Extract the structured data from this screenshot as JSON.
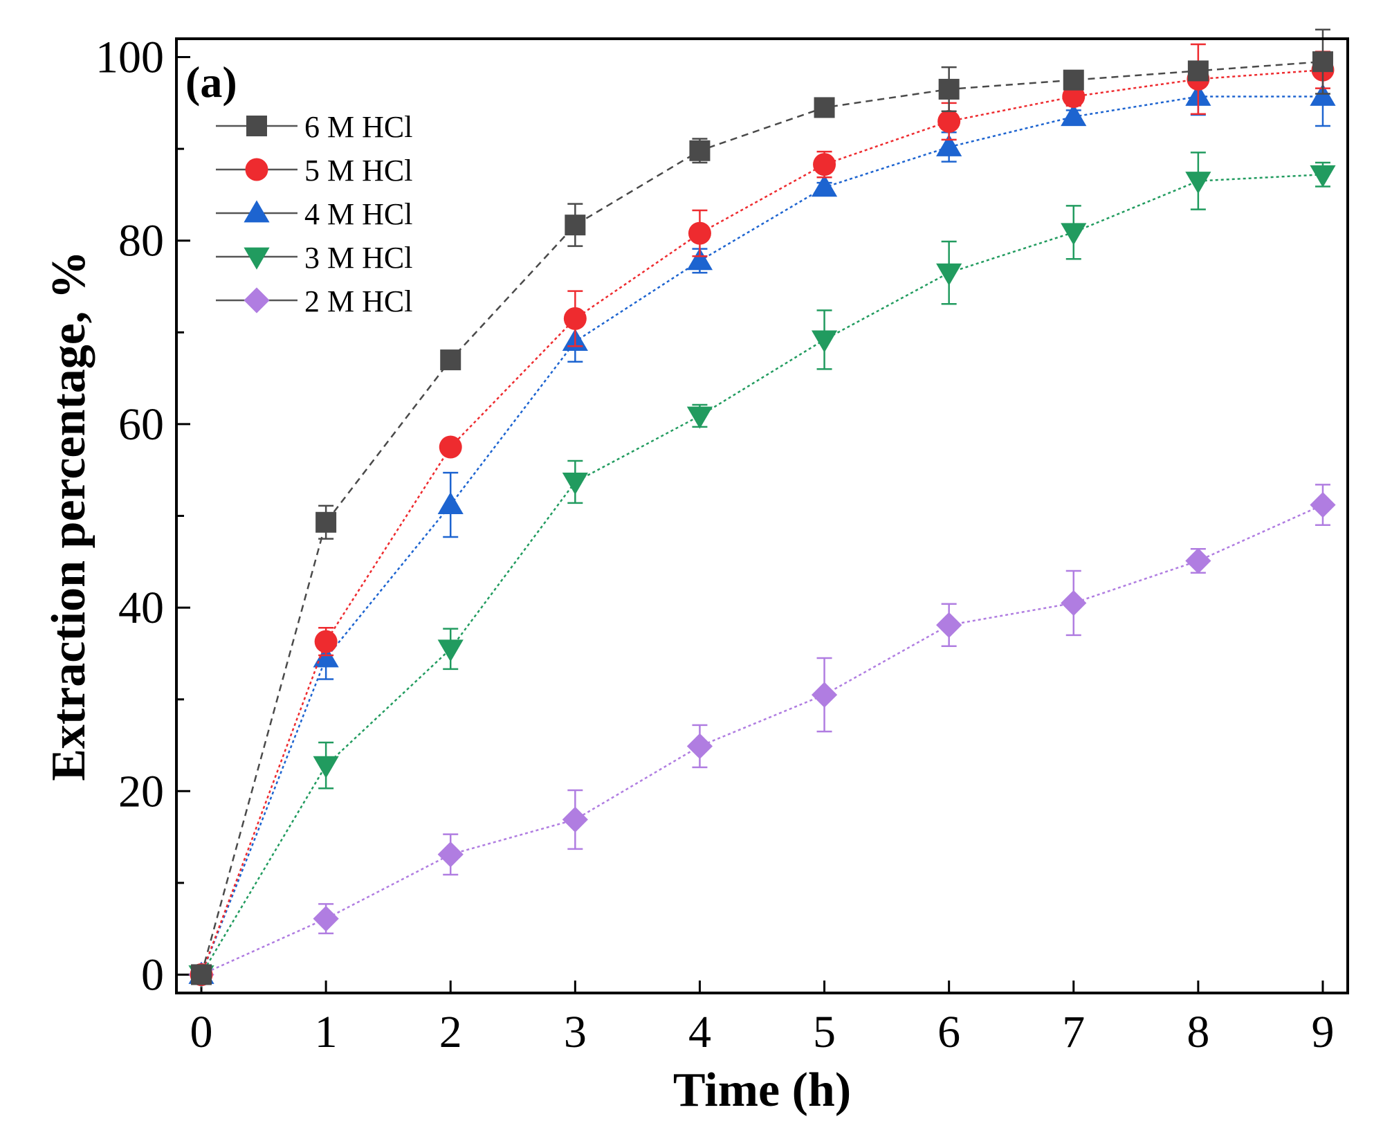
{
  "chart_data": {
    "type": "line",
    "panel_label": "(a)",
    "xlabel": "Time (h)",
    "ylabel": "Extraction percentage, %",
    "xlim": [
      -0.2,
      9.2
    ],
    "ylim": [
      -2,
      102
    ],
    "x_ticks": [
      0,
      1,
      2,
      3,
      4,
      5,
      6,
      7,
      8,
      9
    ],
    "y_ticks": [
      0,
      20,
      40,
      60,
      80,
      100
    ],
    "y_minor_ticks": [
      10,
      30,
      50,
      70,
      90
    ],
    "legend_position": "top-left",
    "x": [
      0,
      1,
      2,
      3,
      4,
      5,
      6,
      7,
      8,
      9
    ],
    "series": [
      {
        "name": "6 M HCl",
        "color": "#4a4a4a",
        "marker": "square",
        "line_style": "dashed",
        "values": [
          0,
          49.3,
          67.0,
          81.7,
          89.8,
          94.5,
          96.5,
          97.5,
          98.5,
          99.5
        ],
        "errors": [
          0,
          1.8,
          1.0,
          2.3,
          1.3,
          0.5,
          2.4,
          0.4,
          0.5,
          3.5
        ]
      },
      {
        "name": "5 M HCl",
        "color": "#ee2b2f",
        "marker": "circle",
        "line_style": "dotted",
        "values": [
          0,
          36.3,
          57.5,
          71.5,
          80.8,
          88.3,
          93.0,
          95.7,
          97.6,
          98.6
        ],
        "errors": [
          0,
          1.5,
          0.5,
          3.0,
          2.5,
          1.4,
          2.0,
          1.0,
          3.8,
          2.0
        ]
      },
      {
        "name": "4 M HCl",
        "color": "#1d64d0",
        "marker": "triangle-up",
        "line_style": "dotted",
        "values": [
          0,
          34.5,
          51.2,
          69.0,
          77.8,
          85.8,
          90.2,
          93.5,
          95.7,
          95.7
        ],
        "errors": [
          0,
          2.3,
          3.5,
          2.2,
          1.3,
          0.5,
          1.6,
          0.7,
          2.0,
          3.2
        ]
      },
      {
        "name": "3 M HCl",
        "color": "#219b5f",
        "marker": "triangle-down",
        "line_style": "dotted",
        "values": [
          0,
          22.8,
          35.5,
          53.7,
          60.9,
          69.2,
          76.5,
          80.9,
          86.5,
          87.2
        ],
        "errors": [
          0,
          2.5,
          2.2,
          2.3,
          1.2,
          3.2,
          3.4,
          2.9,
          3.1,
          1.3
        ]
      },
      {
        "name": "2 M HCl",
        "color": "#b07de1",
        "marker": "diamond",
        "line_style": "dotted",
        "values": [
          0,
          6.1,
          13.1,
          16.9,
          24.9,
          30.5,
          38.1,
          40.5,
          45.1,
          51.2
        ],
        "errors": [
          0,
          1.6,
          2.2,
          3.2,
          2.3,
          4.0,
          2.3,
          3.5,
          1.3,
          2.2
        ]
      }
    ]
  }
}
